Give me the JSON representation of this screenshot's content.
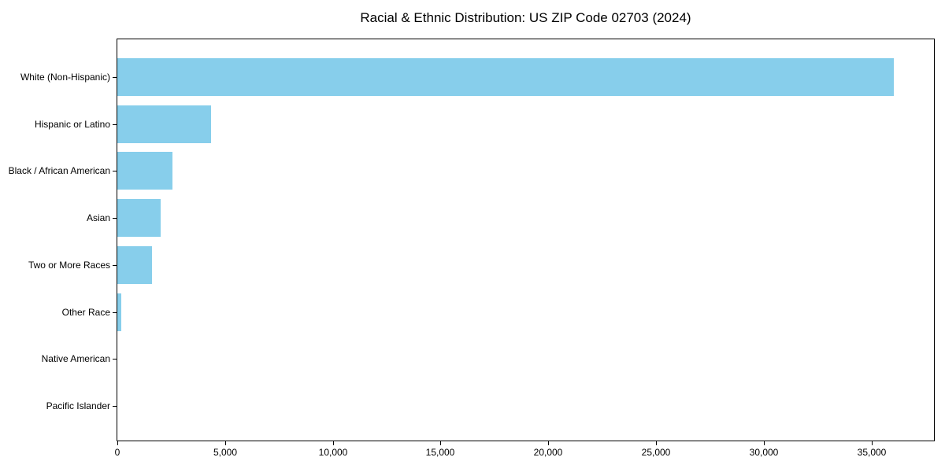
{
  "figure": {
    "background_color": "#ffffff",
    "frame_color": "#000000"
  },
  "chart_data": {
    "type": "bar",
    "orientation": "horizontal",
    "title": "Racial & Ethnic Distribution: US ZIP Code 02703 (2024)",
    "xlabel": "",
    "ylabel": "",
    "categories": [
      "White (Non-Hispanic)",
      "Hispanic or Latino",
      "Black / African American",
      "Asian",
      "Two or More Races",
      "Other Race",
      "Native American",
      "Pacific Islander"
    ],
    "values": [
      36050,
      4360,
      2570,
      2020,
      1620,
      180,
      0,
      0
    ],
    "bar_color": "#87CEEB",
    "xlim": [
      0,
      37900
    ],
    "xticks": [
      0,
      5000,
      10000,
      15000,
      20000,
      25000,
      30000,
      35000
    ],
    "xtick_labels": [
      "0",
      "5,000",
      "10,000",
      "15,000",
      "20,000",
      "25,000",
      "30,000",
      "35,000"
    ],
    "grid": false,
    "legend": "none"
  }
}
